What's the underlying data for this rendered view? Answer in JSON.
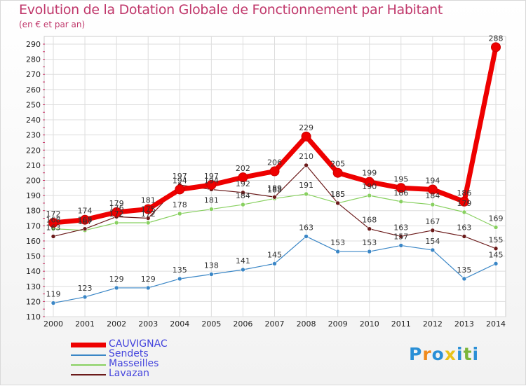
{
  "title": "Evolution de la Dotation Globale de Fonctionnement par Habitant",
  "subtitle": "(en € et par an)",
  "logo": {
    "text": "Proxiti",
    "letters": [
      "P",
      "r",
      "o",
      "x",
      "i",
      "t",
      "i"
    ],
    "colors": [
      "#2a8fd6",
      "#f08a1c",
      "#2a8fd6",
      "#e8c21a",
      "#2a8fd6",
      "#7ab53a",
      "#2a8fd6"
    ]
  },
  "chart_data": {
    "type": "line",
    "title": "Evolution de la Dotation Globale de Fonctionnement par Habitant",
    "subtitle": "(en € et par an)",
    "x": [
      "2000",
      "2001",
      "2002",
      "2003",
      "2004",
      "2005",
      "2006",
      "2007",
      "2008",
      "2009",
      "2010",
      "2011",
      "2012",
      "2013",
      "2014"
    ],
    "ylim": [
      110,
      290
    ],
    "yticks": [
      110,
      120,
      130,
      140,
      150,
      160,
      170,
      180,
      190,
      200,
      210,
      220,
      230,
      240,
      250,
      260,
      270,
      280,
      290
    ],
    "grid": true,
    "legend_position": "bottom-left",
    "series": [
      {
        "name": "CAUVIGNAC",
        "color": "#ee0000",
        "values": [
          172,
          174,
          179,
          181,
          194,
          197,
          202,
          206,
          229,
          205,
          199,
          195,
          194,
          186,
          288
        ]
      },
      {
        "name": "Sendets",
        "color": "#3a86c6",
        "values": [
          119,
          123,
          129,
          129,
          135,
          138,
          141,
          145,
          163,
          153,
          153,
          157,
          154,
          135,
          145
        ]
      },
      {
        "name": "Masseilles",
        "color": "#88d060",
        "values": [
          168,
          167,
          172,
          172,
          178,
          181,
          184,
          188,
          191,
          185,
          190,
          186,
          184,
          179,
          169
        ]
      },
      {
        "name": "Lavazan",
        "color": "#6b1a1a",
        "values": [
          163,
          168,
          176,
          175,
          197,
          194,
          192,
          189,
          210,
          185,
          168,
          163,
          167,
          163,
          155
        ]
      }
    ],
    "labels": {
      "CAUVIGNAC": [
        "172",
        "174",
        "179",
        "181",
        "194",
        "197",
        "202",
        "206",
        "229",
        "205",
        "199",
        "195",
        "194",
        "186",
        "288"
      ],
      "Sendets": [
        "119",
        "123",
        "129",
        "129",
        "135",
        "138",
        "141",
        "145",
        "163",
        "153",
        "153",
        "157",
        "154",
        "135",
        "145"
      ],
      "Masseilles": [
        "168",
        "167",
        "172",
        "172",
        "178",
        "181",
        "184",
        "188",
        "191",
        "185",
        "190",
        "186",
        "184",
        "179",
        "169"
      ],
      "Lavazan": [
        "163",
        "168",
        "176",
        "175",
        "197",
        "194",
        "192",
        "189",
        "210",
        "185",
        "168",
        "163",
        "167",
        "163",
        "155"
      ]
    }
  }
}
